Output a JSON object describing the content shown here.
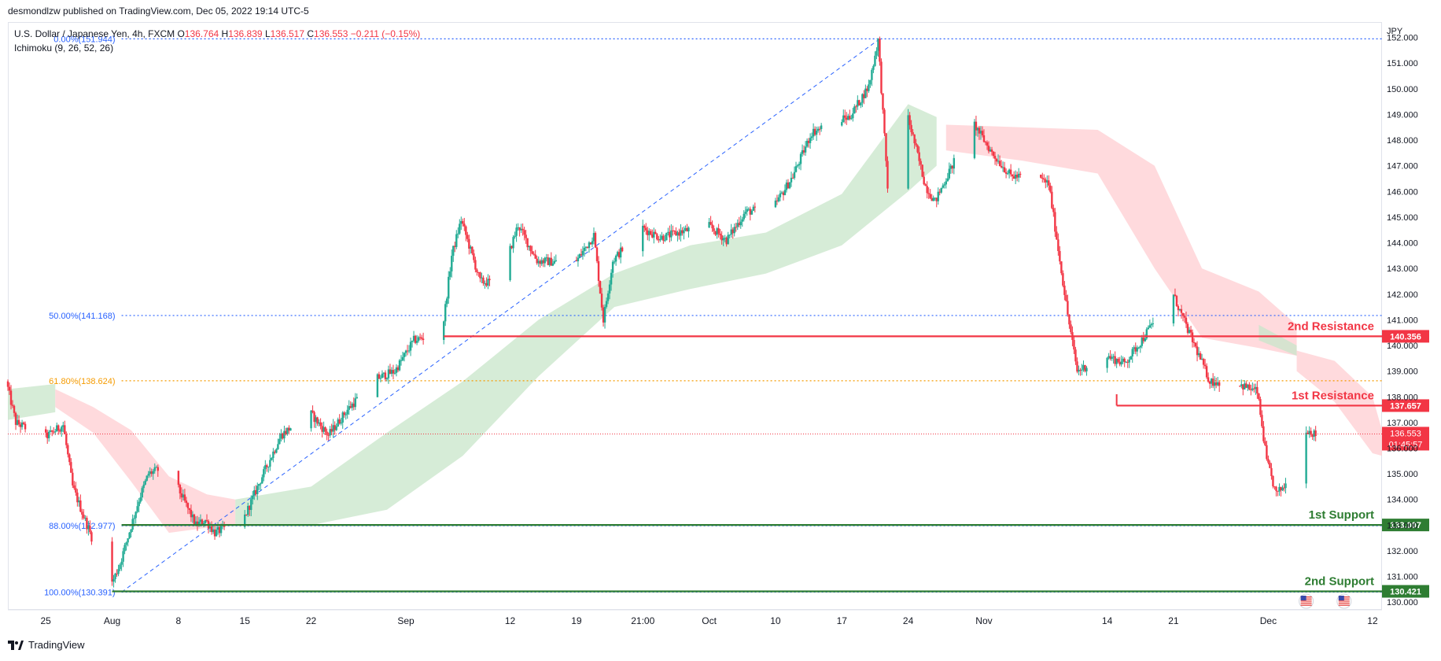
{
  "header": {
    "publisher": "desmondlzw published on TradingView.com, Dec 05, 2022 19:14 UTC-5"
  },
  "legend": {
    "symbol": "U.S. Dollar / Japanese Yen, 4h, FXCM",
    "o_label": "O",
    "o": "136.764",
    "h_label": "H",
    "h": "136.839",
    "l_label": "L",
    "l": "136.517",
    "c_label": "C",
    "c": "136.553",
    "change": "−0.211 (−0.15%)",
    "indicator": "Ichimoku (9, 26, 52, 26)"
  },
  "footer": {
    "brand": "TradingView"
  },
  "colors": {
    "bull": "#22ab94",
    "bear": "#f23645",
    "resistance": "#f23645",
    "support": "#2e7d32",
    "fib_blue": "#2962ff",
    "fib_orange": "#f59b00",
    "cloud_bull": "#c8e6c9",
    "cloud_bear": "#ffcdd2"
  },
  "chart_data": {
    "type": "candlestick",
    "currency_label": "JPY",
    "ylim": [
      129.7,
      152.6
    ],
    "y_ticks": [
      130.0,
      131.0,
      132.0,
      133.0,
      134.0,
      135.0,
      136.0,
      137.0,
      138.0,
      139.0,
      140.0,
      141.0,
      142.0,
      143.0,
      144.0,
      145.0,
      146.0,
      147.0,
      148.0,
      149.0,
      150.0,
      151.0,
      152.0
    ],
    "y_tick_labels": [
      "130.000",
      "131.000",
      "132.000",
      "133.000",
      "134.000",
      "135.000",
      "136.000",
      "137.000",
      "138.000",
      "139.000",
      "140.000",
      "141.000",
      "142.000",
      "143.000",
      "144.000",
      "145.000",
      "146.000",
      "147.000",
      "148.000",
      "149.000",
      "150.000",
      "151.000",
      "152.000"
    ],
    "x_range": [
      "2022-07-21",
      "2022-12-13"
    ],
    "x_ticks": [
      {
        "date": "2022-07-25",
        "label": "25"
      },
      {
        "date": "2022-08-01",
        "label": "Aug"
      },
      {
        "date": "2022-08-08",
        "label": "8"
      },
      {
        "date": "2022-08-15",
        "label": "15"
      },
      {
        "date": "2022-08-22",
        "label": "22"
      },
      {
        "date": "2022-09-01",
        "label": "Sep"
      },
      {
        "date": "2022-09-12",
        "label": "12"
      },
      {
        "date": "2022-09-19",
        "label": "19"
      },
      {
        "date": "2022-09-26",
        "label": "21:00"
      },
      {
        "date": "2022-10-03",
        "label": "Oct"
      },
      {
        "date": "2022-10-10",
        "label": "10"
      },
      {
        "date": "2022-10-17",
        "label": "17"
      },
      {
        "date": "2022-10-24",
        "label": "24"
      },
      {
        "date": "2022-11-01",
        "label": "Nov"
      },
      {
        "date": "2022-11-14",
        "label": "14"
      },
      {
        "date": "2022-11-21",
        "label": "21"
      },
      {
        "date": "2022-12-01",
        "label": "Dec"
      },
      {
        "date": "2022-12-12",
        "label": "12"
      }
    ],
    "price_path": [
      [
        "2022-07-21",
        138.6
      ],
      [
        "2022-07-22",
        137.0
      ],
      [
        "2022-07-25",
        136.4
      ],
      [
        "2022-07-27",
        136.9
      ],
      [
        "2022-07-28",
        134.5
      ],
      [
        "2022-07-29",
        133.5
      ],
      [
        "2022-08-01",
        130.6
      ],
      [
        "2022-08-02",
        131.5
      ],
      [
        "2022-08-04",
        134.0
      ],
      [
        "2022-08-05",
        135.0
      ],
      [
        "2022-08-07",
        135.3
      ],
      [
        "2022-08-10",
        133.0
      ],
      [
        "2022-08-11",
        133.2
      ],
      [
        "2022-08-12",
        132.7
      ],
      [
        "2022-08-15",
        133.2
      ],
      [
        "2022-08-17",
        134.9
      ],
      [
        "2022-08-19",
        136.5
      ],
      [
        "2022-08-22",
        137.4
      ],
      [
        "2022-08-24",
        136.5
      ],
      [
        "2022-08-26",
        137.5
      ],
      [
        "2022-08-29",
        138.7
      ],
      [
        "2022-08-31",
        139.0
      ],
      [
        "2022-09-02",
        140.2
      ],
      [
        "2022-09-05",
        140.5
      ],
      [
        "2022-09-06",
        143.5
      ],
      [
        "2022-09-07",
        144.9
      ],
      [
        "2022-09-09",
        142.5
      ],
      [
        "2022-09-11",
        142.4
      ],
      [
        "2022-09-13",
        144.7
      ],
      [
        "2022-09-15",
        143.3
      ],
      [
        "2022-09-19",
        143.2
      ],
      [
        "2022-09-21",
        144.3
      ],
      [
        "2022-09-22",
        141.0
      ],
      [
        "2022-09-23",
        143.3
      ],
      [
        "2022-09-26",
        144.6
      ],
      [
        "2022-09-28",
        144.2
      ],
      [
        "2022-10-03",
        144.7
      ],
      [
        "2022-10-05",
        144.1
      ],
      [
        "2022-10-07",
        145.2
      ],
      [
        "2022-10-10",
        145.4
      ],
      [
        "2022-10-12",
        146.6
      ],
      [
        "2022-10-14",
        148.3
      ],
      [
        "2022-10-17",
        148.8
      ],
      [
        "2022-10-18",
        148.9
      ],
      [
        "2022-10-20",
        150.1
      ],
      [
        "2022-10-21",
        151.9
      ],
      [
        "2022-10-22",
        146.2
      ],
      [
        "2022-10-24",
        149.1
      ],
      [
        "2022-10-26",
        146.2
      ],
      [
        "2022-10-27",
        145.6
      ],
      [
        "2022-10-31",
        148.7
      ],
      [
        "2022-11-02",
        147.5
      ],
      [
        "2022-11-04",
        146.6
      ],
      [
        "2022-11-07",
        146.5
      ],
      [
        "2022-11-08",
        146.3
      ],
      [
        "2022-11-10",
        141.2
      ],
      [
        "2022-11-11",
        139.0
      ],
      [
        "2022-11-14",
        139.6
      ],
      [
        "2022-11-16",
        139.3
      ],
      [
        "2022-11-18",
        140.3
      ],
      [
        "2022-11-21",
        142.1
      ],
      [
        "2022-11-22",
        141.2
      ],
      [
        "2022-11-25",
        138.6
      ],
      [
        "2022-11-28",
        138.5
      ],
      [
        "2022-11-30",
        138.2
      ],
      [
        "2022-12-01",
        135.5
      ],
      [
        "2022-12-02",
        134.2
      ],
      [
        "2022-12-03",
        134.6
      ],
      [
        "2022-12-05",
        136.8
      ],
      [
        "2022-12-06",
        136.55
      ]
    ],
    "cloud_segments": [
      {
        "sentiment": "bull",
        "top": [
          [
            "2022-07-21",
            138.3
          ],
          [
            "2022-07-26",
            138.5
          ]
        ],
        "bottom": [
          [
            "2022-07-21",
            137.1
          ],
          [
            "2022-07-26",
            137.4
          ]
        ]
      },
      {
        "sentiment": "bear",
        "top": [
          [
            "2022-07-26",
            138.3
          ],
          [
            "2022-07-30",
            137.6
          ],
          [
            "2022-08-03",
            136.7
          ],
          [
            "2022-08-07",
            134.9
          ],
          [
            "2022-08-11",
            134.2
          ],
          [
            "2022-08-14",
            134.0
          ]
        ],
        "bottom": [
          [
            "2022-07-26",
            137.6
          ],
          [
            "2022-07-30",
            136.6
          ],
          [
            "2022-08-03",
            134.7
          ],
          [
            "2022-08-07",
            132.7
          ],
          [
            "2022-08-11",
            132.9
          ],
          [
            "2022-08-14",
            133.0
          ]
        ]
      },
      {
        "sentiment": "bull",
        "top": [
          [
            "2022-08-14",
            134.0
          ],
          [
            "2022-08-22",
            134.5
          ],
          [
            "2022-08-30",
            136.6
          ],
          [
            "2022-09-07",
            138.6
          ],
          [
            "2022-09-15",
            141.0
          ],
          [
            "2022-09-23",
            142.8
          ],
          [
            "2022-10-01",
            143.9
          ],
          [
            "2022-10-09",
            144.4
          ],
          [
            "2022-10-17",
            145.9
          ],
          [
            "2022-10-24",
            149.4
          ],
          [
            "2022-10-27",
            148.9
          ]
        ],
        "bottom": [
          [
            "2022-08-14",
            133.0
          ],
          [
            "2022-08-22",
            133.0
          ],
          [
            "2022-08-30",
            133.6
          ],
          [
            "2022-09-07",
            135.7
          ],
          [
            "2022-09-15",
            138.8
          ],
          [
            "2022-09-23",
            141.5
          ],
          [
            "2022-10-01",
            142.2
          ],
          [
            "2022-10-09",
            142.8
          ],
          [
            "2022-10-17",
            143.9
          ],
          [
            "2022-10-24",
            146.0
          ],
          [
            "2022-10-27",
            147.0
          ]
        ]
      },
      {
        "sentiment": "bear",
        "top": [
          [
            "2022-10-28",
            148.6
          ],
          [
            "2022-11-05",
            148.5
          ],
          [
            "2022-11-13",
            148.4
          ],
          [
            "2022-11-19",
            147.0
          ],
          [
            "2022-11-24",
            143.0
          ],
          [
            "2022-11-30",
            142.1
          ],
          [
            "2022-12-04",
            140.8
          ]
        ],
        "bottom": [
          [
            "2022-10-28",
            147.6
          ],
          [
            "2022-11-05",
            147.2
          ],
          [
            "2022-11-13",
            146.7
          ],
          [
            "2022-11-19",
            143.0
          ],
          [
            "2022-11-24",
            140.3
          ],
          [
            "2022-11-30",
            139.9
          ],
          [
            "2022-12-04",
            139.6
          ]
        ]
      },
      {
        "sentiment": "bull",
        "top": [
          [
            "2022-11-30",
            140.8
          ],
          [
            "2022-12-04",
            140.0
          ]
        ],
        "bottom": [
          [
            "2022-11-30",
            140.2
          ],
          [
            "2022-12-04",
            139.6
          ]
        ]
      },
      {
        "sentiment": "bear",
        "top": [
          [
            "2022-12-04",
            139.8
          ],
          [
            "2022-12-08",
            139.4
          ],
          [
            "2022-12-12",
            138.0
          ],
          [
            "2022-12-13",
            136.7
          ]
        ],
        "bottom": [
          [
            "2022-12-04",
            139.0
          ],
          [
            "2022-12-08",
            137.8
          ],
          [
            "2022-12-12",
            135.8
          ],
          [
            "2022-12-13",
            135.7
          ]
        ]
      }
    ],
    "fib_levels": [
      {
        "label": "0.00%(151.944)",
        "price": 151.944,
        "color": "#2962ff"
      },
      {
        "label": "50.00%(141.168)",
        "price": 141.168,
        "color": "#2962ff"
      },
      {
        "label": "61.80%(138.624)",
        "price": 138.624,
        "color": "#f59b00"
      },
      {
        "label": "88.00%(132.977)",
        "price": 132.977,
        "color": "#2962ff"
      },
      {
        "label": "100.00%(130.391)",
        "price": 130.391,
        "color": "#2962ff"
      }
    ],
    "fib_trend": {
      "from": [
        "2022-08-02",
        130.391
      ],
      "to": [
        "2022-10-21",
        151.944
      ]
    },
    "levels": [
      {
        "name": "2nd Resistance",
        "price_label": "140.356",
        "price": 140.356,
        "start": "2022-09-05",
        "kind": "resistance"
      },
      {
        "name": "1st Resistance",
        "price_label": "137.657",
        "price": 137.657,
        "start": "2022-11-15",
        "kind": "resistance"
      },
      {
        "name": "1st Support",
        "price_label": "133.007",
        "price": 133.007,
        "start": "2022-08-02",
        "kind": "support"
      },
      {
        "name": "2nd Support",
        "price_label": "130.421",
        "price": 130.421,
        "start": "2022-08-01",
        "kind": "support"
      }
    ],
    "current_price": {
      "price": 136.553,
      "label": "136.553",
      "countdown": "01:45:57"
    },
    "events": [
      "2022-12-05",
      "2022-12-09"
    ]
  }
}
